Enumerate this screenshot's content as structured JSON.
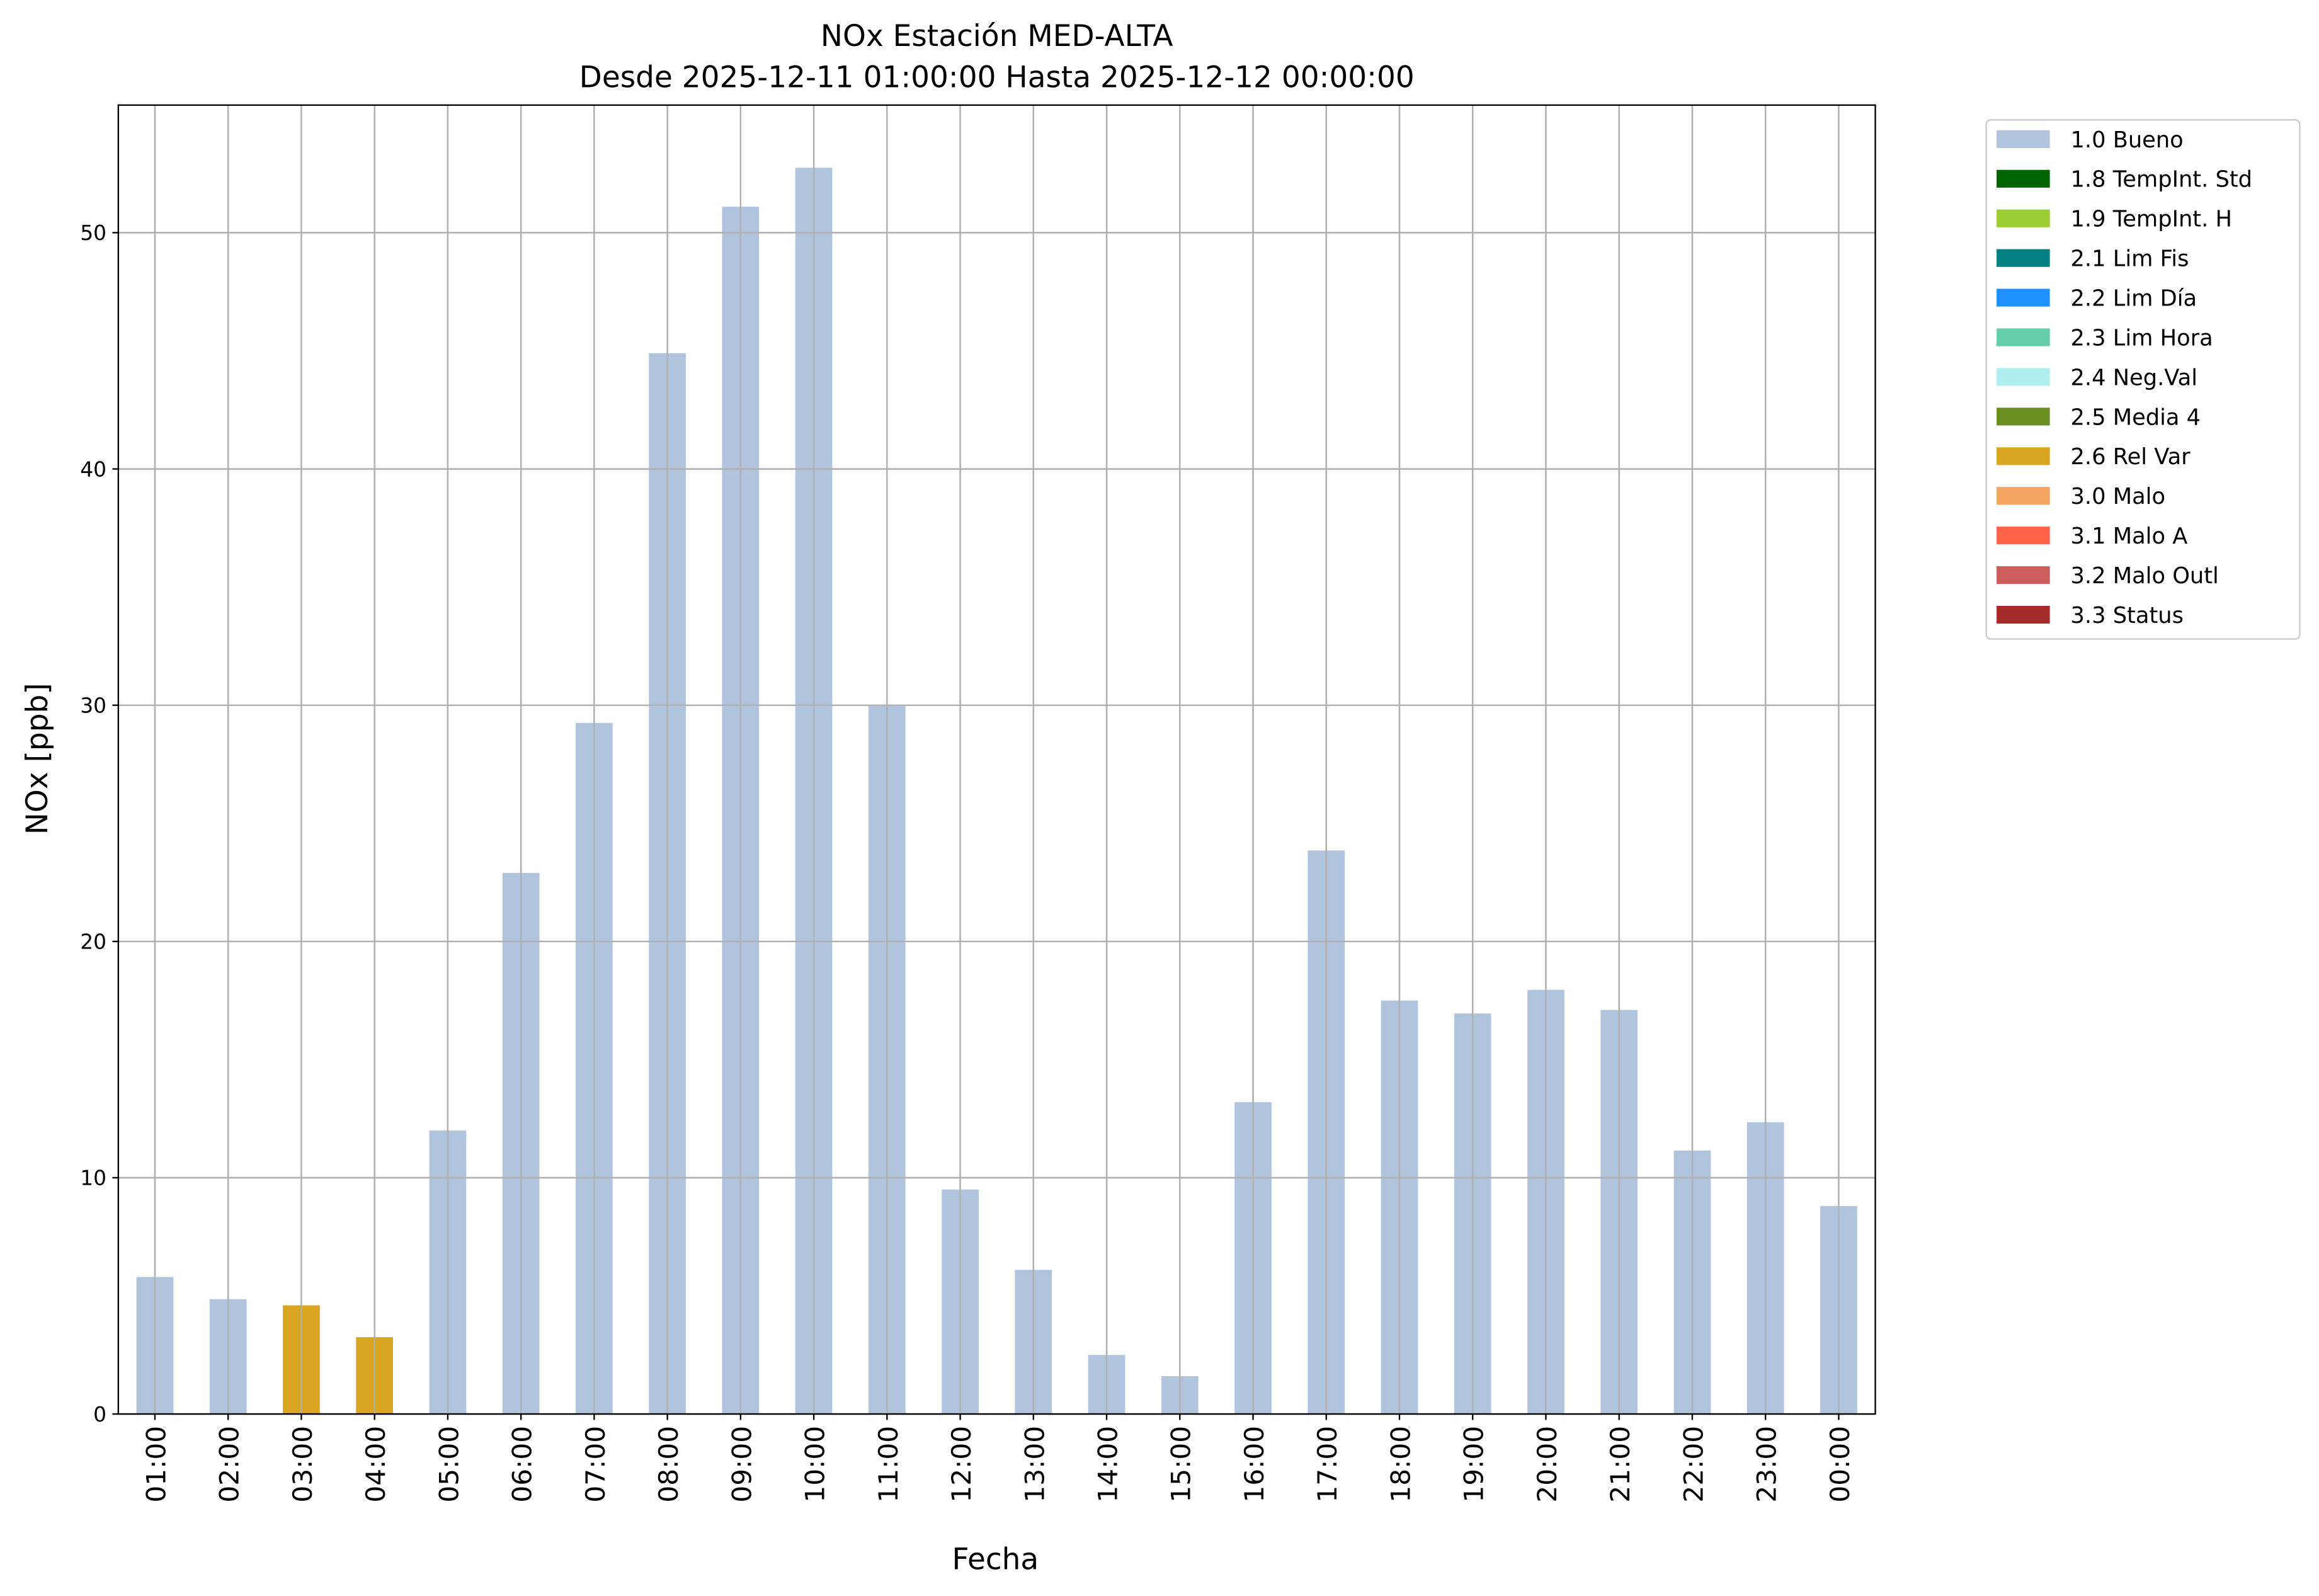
{
  "chart_data": {
    "type": "bar",
    "title": "NOx Estación MED-ALTA",
    "subtitle": "Desde 2025-12-11 01:00:00 Hasta 2025-12-12 00:00:00",
    "xlabel": "Fecha",
    "ylabel": "NOx [ppb]",
    "ylim": [
      0,
      55.4
    ],
    "yticks": [
      0,
      10,
      20,
      30,
      40,
      50
    ],
    "grid": true,
    "legend_position": "outside-top-right",
    "categories": [
      "01:00",
      "02:00",
      "03:00",
      "04:00",
      "05:00",
      "06:00",
      "07:00",
      "08:00",
      "09:00",
      "10:00",
      "11:00",
      "12:00",
      "13:00",
      "14:00",
      "15:00",
      "16:00",
      "17:00",
      "18:00",
      "19:00",
      "20:00",
      "21:00",
      "22:00",
      "23:00",
      "00:00"
    ],
    "values": [
      5.8,
      4.86,
      4.6,
      3.25,
      12.0,
      22.9,
      29.25,
      44.9,
      51.1,
      52.75,
      30.0,
      9.5,
      6.1,
      2.5,
      1.6,
      13.2,
      23.85,
      17.5,
      16.95,
      17.95,
      17.1,
      11.15,
      12.35,
      8.8
    ],
    "flags": [
      "1.0 Bueno",
      "1.0 Bueno",
      "2.6 Rel Var",
      "2.6 Rel Var",
      "1.0 Bueno",
      "1.0 Bueno",
      "1.0 Bueno",
      "1.0 Bueno",
      "1.0 Bueno",
      "1.0 Bueno",
      "1.0 Bueno",
      "1.0 Bueno",
      "1.0 Bueno",
      "1.0 Bueno",
      "1.0 Bueno",
      "1.0 Bueno",
      "1.0 Bueno",
      "1.0 Bueno",
      "1.0 Bueno",
      "1.0 Bueno",
      "1.0 Bueno",
      "1.0 Bueno",
      "1.0 Bueno",
      "1.0 Bueno"
    ],
    "legend": [
      {
        "label": "1.0 Bueno",
        "color": "#b0c4de"
      },
      {
        "label": "1.8 TempInt. Std",
        "color": "#006400"
      },
      {
        "label": "1.9 TempInt. H",
        "color": "#9acd32"
      },
      {
        "label": "2.1 Lim Fis",
        "color": "#008080"
      },
      {
        "label": "2.2 Lim Día",
        "color": "#1e90ff"
      },
      {
        "label": "2.3 Lim Hora",
        "color": "#66cdaa"
      },
      {
        "label": "2.4 Neg.Val",
        "color": "#afeeee"
      },
      {
        "label": "2.5 Media 4",
        "color": "#6b8e23"
      },
      {
        "label": "2.6 Rel Var",
        "color": "#daa520"
      },
      {
        "label": "3.0 Malo",
        "color": "#f4a460"
      },
      {
        "label": "3.1 Malo A",
        "color": "#ff6347"
      },
      {
        "label": "3.2 Malo Outl",
        "color": "#cd5c5c"
      },
      {
        "label": "3.3 Status",
        "color": "#a52a2a"
      }
    ]
  }
}
